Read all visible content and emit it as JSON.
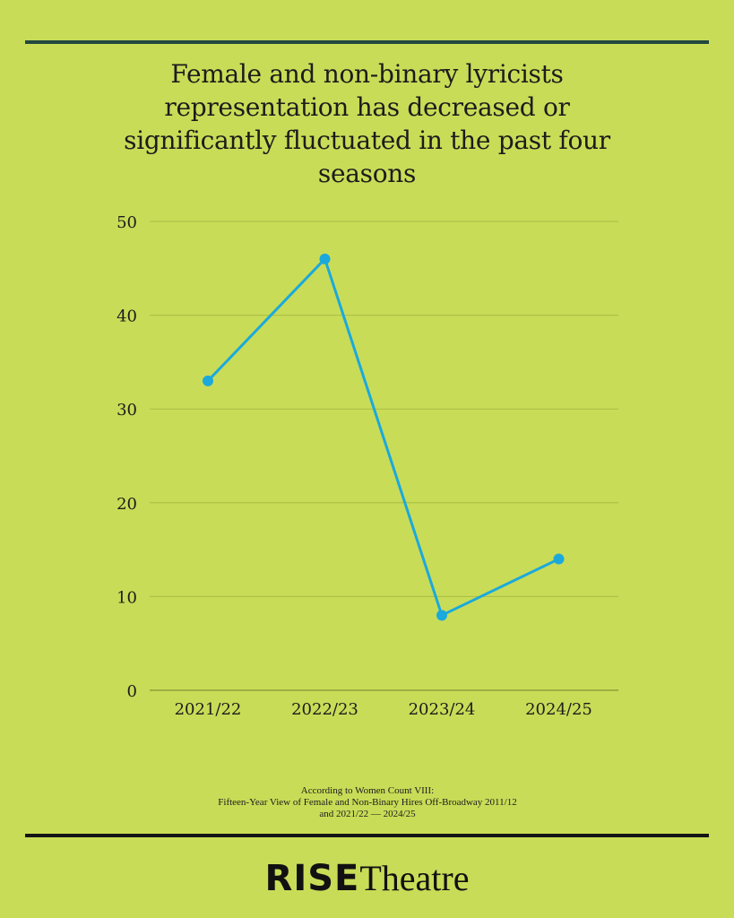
{
  "title": "Female and non-binary lyricists representation has decreased or significantly fluctuated in the past four seasons",
  "footnote": {
    "line1": "According to Women Count VIII:",
    "line2": "Fifteen-Year View of Female and Non-Binary Hires Off-Broadway 2011/12",
    "line3": "and 2021/22 — 2024/25"
  },
  "logo": {
    "part1": "RISE",
    "part2": "Theatre"
  },
  "colors": {
    "background": "#c9dc57",
    "line": "#1ba9dc",
    "grid": "#a9bc45",
    "axis": "#8e9e3c",
    "top_rule": "#24483f",
    "bottom_rule": "#151515"
  },
  "chart_data": {
    "type": "line",
    "title": "Female and non-binary lyricists representation has decreased or significantly fluctuated in the past four seasons",
    "categories": [
      "2021/22",
      "2022/23",
      "2023/24",
      "2024/25"
    ],
    "series": [
      {
        "values": [
          33,
          46,
          8,
          14
        ]
      }
    ],
    "y_ticks": [
      0,
      10,
      20,
      30,
      40,
      50
    ],
    "ylim": [
      0,
      50
    ],
    "xlabel": "",
    "ylabel": "",
    "grid": true,
    "legend": "none"
  }
}
